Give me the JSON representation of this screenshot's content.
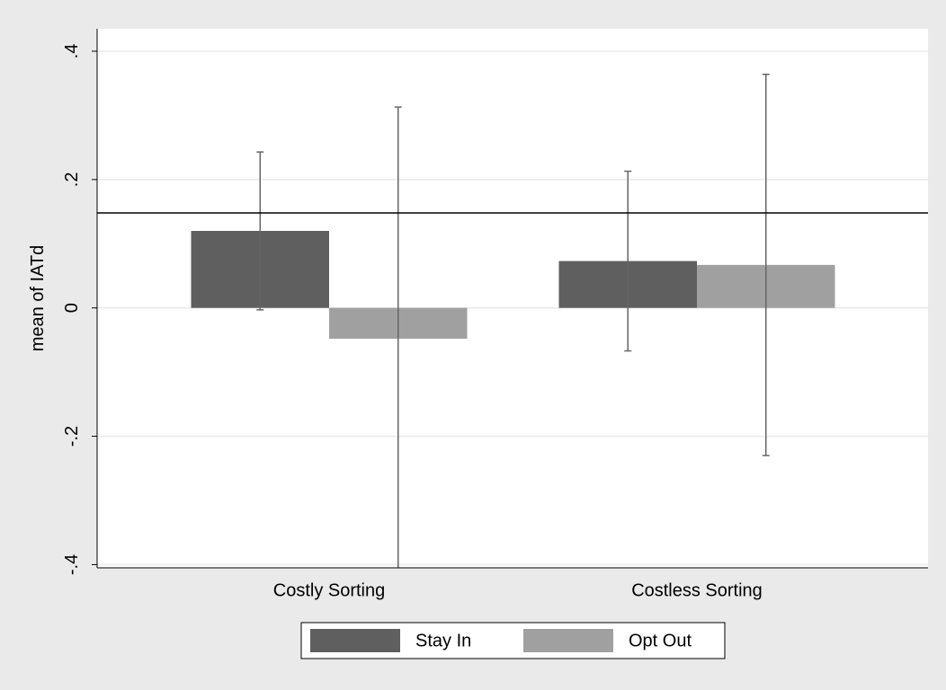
{
  "chart_data": {
    "type": "bar",
    "y_label": "mean of IATd",
    "categories": [
      "Costly Sorting",
      "Costless Sorting"
    ],
    "series": [
      {
        "name": "Stay In",
        "color": "#5f5f5f",
        "values": [
          0.12,
          0.073
        ],
        "errors": [
          0.123,
          0.14
        ]
      },
      {
        "name": "Opt Out",
        "color": "#a0a0a0",
        "values": [
          -0.048,
          0.067
        ],
        "errors": [
          0.361,
          0.297
        ]
      }
    ],
    "reference_line": 0.148,
    "ylim": [
      -0.405,
      0.435
    ],
    "yticks": [
      {
        "value": -0.4,
        "label": "-.4"
      },
      {
        "value": -0.2,
        "label": "-.2"
      },
      0,
      {
        "value": 0.2,
        "label": ".2"
      },
      {
        "value": 0.4,
        "label": ".4"
      }
    ],
    "grid": true
  }
}
